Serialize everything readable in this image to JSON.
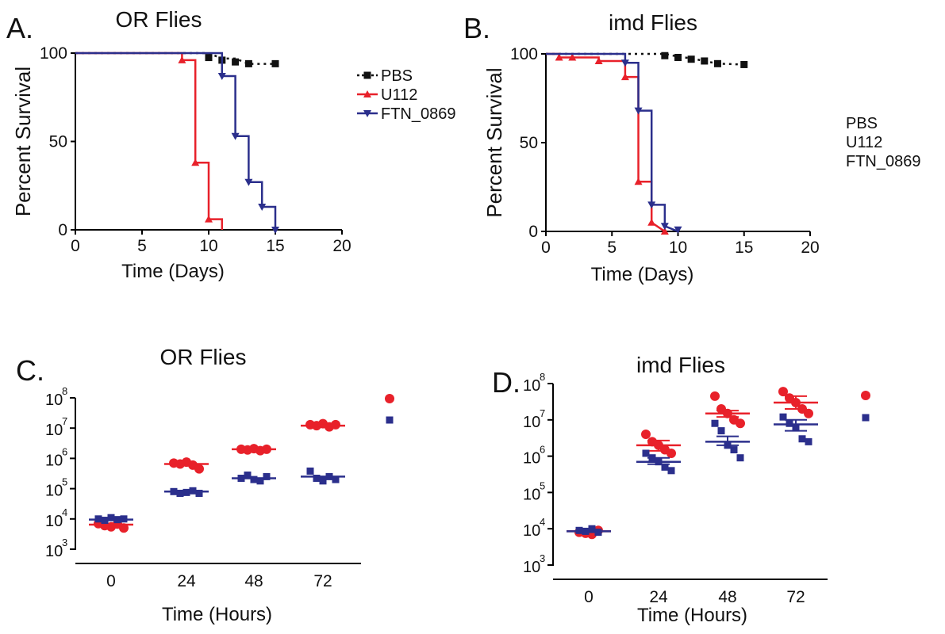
{
  "colors": {
    "pbs": "#111111",
    "u112": "#e8212a",
    "ftn": "#2b2f8c",
    "axis": "#000000"
  },
  "chart_data": [
    {
      "id": "A",
      "type": "line",
      "panel_letter": "A.",
      "title": "OR Flies",
      "xlabel": "Time (Days)",
      "ylabel": "Percent Survival",
      "xlim": [
        0,
        20
      ],
      "ylim": [
        0,
        100
      ],
      "x_ticks": [
        "0",
        "5",
        "10",
        "15",
        "20"
      ],
      "y_ticks": [
        "0",
        "50",
        "100"
      ],
      "legend": [
        "PBS",
        "U112",
        "FTN_0869"
      ],
      "series": [
        {
          "name": "PBS",
          "x": [
            0,
            10,
            11,
            12,
            13,
            15
          ],
          "y": [
            100,
            100,
            96.9,
            96.9,
            93.9,
            93.9
          ],
          "markers": [
            [
              10,
              97.5
            ],
            [
              11,
              96
            ],
            [
              12,
              95
            ],
            [
              13,
              94
            ],
            [
              15,
              94
            ]
          ]
        },
        {
          "name": "U112",
          "x": [
            0,
            8,
            8,
            9,
            9,
            10,
            10,
            11,
            11
          ],
          "y": [
            100,
            100,
            96,
            96,
            38,
            38,
            6,
            6,
            0
          ],
          "markers": [
            [
              8,
              96
            ],
            [
              9,
              38
            ],
            [
              10,
              6
            ]
          ]
        },
        {
          "name": "FTN_0869",
          "x": [
            0,
            11,
            11,
            12,
            12,
            13,
            13,
            14,
            14,
            15,
            15
          ],
          "y": [
            100,
            100,
            87,
            87,
            53,
            53,
            27,
            27,
            13,
            13,
            0
          ],
          "markers": [
            [
              11,
              87
            ],
            [
              12,
              53
            ],
            [
              13,
              27
            ],
            [
              14,
              13
            ],
            [
              15,
              0
            ]
          ]
        }
      ]
    },
    {
      "id": "B",
      "type": "line",
      "panel_letter": "B.",
      "title": "imd Flies",
      "xlabel": "Time (Days)",
      "ylabel": "Percent Survival",
      "xlim": [
        0,
        20
      ],
      "ylim": [
        0,
        100
      ],
      "x_ticks": [
        "0",
        "5",
        "10",
        "15",
        "20"
      ],
      "y_ticks": [
        "0",
        "50",
        "100"
      ],
      "legend": [
        "PBS",
        "U112",
        "FTN_0869"
      ],
      "series": [
        {
          "name": "PBS",
          "x": [
            0,
            9,
            10,
            11,
            12,
            13,
            15
          ],
          "y": [
            100,
            100,
            98.5,
            97.5,
            96,
            94.5,
            94
          ],
          "markers": [
            [
              9,
              99
            ],
            [
              10,
              98
            ],
            [
              11,
              97
            ],
            [
              12,
              96
            ],
            [
              13,
              94.5
            ],
            [
              15,
              94
            ]
          ]
        },
        {
          "name": "U112",
          "x": [
            0,
            1,
            1,
            4,
            4,
            6,
            6,
            7,
            7,
            8,
            8,
            9
          ],
          "y": [
            100,
            100,
            98,
            98,
            96,
            96,
            87,
            87,
            28,
            28,
            5,
            0
          ],
          "markers": [
            [
              1,
              98
            ],
            [
              2,
              98
            ],
            [
              4,
              96
            ],
            [
              6,
              87
            ],
            [
              7,
              28
            ],
            [
              8,
              5
            ],
            [
              9,
              0
            ]
          ]
        },
        {
          "name": "FTN_0869",
          "x": [
            0,
            6,
            6,
            7,
            7,
            8,
            8,
            9,
            9,
            10
          ],
          "y": [
            100,
            100,
            95,
            95,
            68,
            68,
            15,
            15,
            3,
            0
          ],
          "markers": [
            [
              6,
              95
            ],
            [
              7,
              68
            ],
            [
              8,
              15
            ],
            [
              9,
              3
            ],
            [
              10,
              1
            ]
          ]
        }
      ]
    },
    {
      "id": "C",
      "type": "scatter",
      "panel_letter": "C.",
      "title": "OR Flies",
      "xlabel": "Time (Hours)",
      "ylabel": "",
      "log_scale": true,
      "ylim": [
        1000,
        100000000
      ],
      "categories": [
        "0",
        "24",
        "48",
        "72"
      ],
      "y_tick_exponents": [
        "3",
        "4",
        "5",
        "6",
        "7",
        "8"
      ],
      "series": [
        {
          "name": "U112",
          "values": [
            [
              7000,
              6000,
              5500,
              6800,
              5000
            ],
            [
              700000,
              650000,
              750000,
              600000,
              450000
            ],
            [
              2000000,
              1900000,
              2100000,
              1800000,
              2000000
            ],
            [
              13000000,
              12000000,
              14000000,
              11000000,
              13000000
            ]
          ],
          "mean": [
            6500,
            650000,
            2000000,
            12000000
          ]
        },
        {
          "name": "FTN_0869",
          "values": [
            [
              10000,
              9000,
              11000,
              9500,
              10000
            ],
            [
              80000,
              70000,
              75000,
              85000,
              70000
            ],
            [
              220000,
              280000,
              200000,
              180000,
              250000
            ],
            [
              380000,
              220000,
              180000,
              250000,
              200000
            ]
          ],
          "mean": [
            9500,
            80000,
            220000,
            250000
          ]
        }
      ],
      "legend_markers": [
        "U112",
        "FTN_0869"
      ]
    },
    {
      "id": "D",
      "type": "scatter",
      "panel_letter": "D.",
      "title": "imd Flies",
      "xlabel": "Time (Hours)",
      "ylabel": "",
      "log_scale": true,
      "ylim": [
        1000,
        100000000
      ],
      "categories": [
        "0",
        "24",
        "48",
        "72"
      ],
      "y_tick_exponents": [
        "3",
        "4",
        "5",
        "6",
        "7",
        "8"
      ],
      "series": [
        {
          "name": "U112",
          "values": [
            [
              8000,
              7500,
              7000,
              9000
            ],
            [
              4000000,
              2500000,
              2000000,
              1500000,
              1200000
            ],
            [
              45000000,
              20000000,
              15000000,
              10000000,
              8000000
            ],
            [
              60000000,
              40000000,
              30000000,
              20000000,
              15000000
            ]
          ],
          "mean": [
            8500,
            2000000,
            15000000,
            30000000
          ],
          "error": [
            [
              7500,
              9500
            ],
            [
              1400000,
              2700000
            ],
            [
              12000000,
              18000000
            ],
            [
              20000000,
              45000000
            ]
          ]
        },
        {
          "name": "FTN_0869",
          "values": [
            [
              9000,
              8500,
              10000,
              8000
            ],
            [
              1200000,
              900000,
              700000,
              500000,
              400000
            ],
            [
              8000000,
              5000000,
              2000000,
              1500000,
              900000
            ],
            [
              12000000,
              8000000,
              6000000,
              3000000,
              2500000
            ]
          ],
          "mean": [
            8500,
            700000,
            2500000,
            7500000
          ],
          "error": [
            [
              8000,
              9500
            ],
            [
              600000,
              900000
            ],
            [
              2000000,
              3500000
            ],
            [
              5000000,
              10000000
            ]
          ]
        }
      ],
      "legend_markers": [
        "U112",
        "FTN_0869"
      ]
    }
  ]
}
